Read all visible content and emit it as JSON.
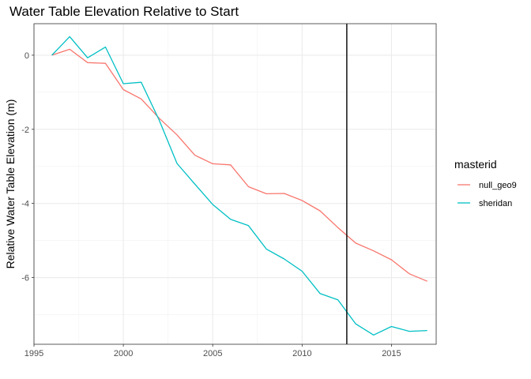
{
  "chart_data": {
    "type": "line",
    "title": "Water Table Elevation Relative to Start",
    "xlabel": "",
    "ylabel": "Relative Water Table Elevation (m)",
    "xlim": [
      1995,
      2017.5
    ],
    "ylim": [
      -7.8,
      0.85
    ],
    "x_ticks": [
      1995,
      2000,
      2005,
      2010,
      2015
    ],
    "y_ticks": [
      0,
      -2,
      -4,
      -6
    ],
    "x_tick_labels": [
      "1995",
      "2000",
      "2005",
      "2010",
      "2015"
    ],
    "y_tick_labels": [
      "0",
      "-2",
      "-4",
      "-6"
    ],
    "grid": true,
    "vline_x": 2012.5,
    "legend": {
      "title": "masterid",
      "position": "right"
    },
    "x": [
      1996,
      1997,
      1998,
      1999,
      2000,
      2001,
      2002,
      2003,
      2004,
      2005,
      2006,
      2007,
      2008,
      2009,
      2010,
      2011,
      2012,
      2013,
      2014,
      2015,
      2016,
      2017
    ],
    "series": [
      {
        "name": "null_geo9",
        "color": "#F8766D",
        "values": [
          0,
          0.16,
          -0.2,
          -0.22,
          -0.93,
          -1.18,
          -1.7,
          -2.15,
          -2.7,
          -2.93,
          -2.96,
          -3.55,
          -3.74,
          -3.73,
          -3.92,
          -4.2,
          -4.65,
          -5.07,
          -5.28,
          -5.52,
          -5.9,
          -6.1
        ]
      },
      {
        "name": "sheridan",
        "color": "#00BFC4",
        "values": [
          0,
          0.5,
          -0.07,
          0.22,
          -0.77,
          -0.73,
          -1.75,
          -2.92,
          -3.48,
          -4.03,
          -4.43,
          -4.6,
          -5.23,
          -5.5,
          -5.83,
          -6.43,
          -6.6,
          -7.25,
          -7.55,
          -7.32,
          -7.45,
          -7.43
        ]
      }
    ]
  }
}
